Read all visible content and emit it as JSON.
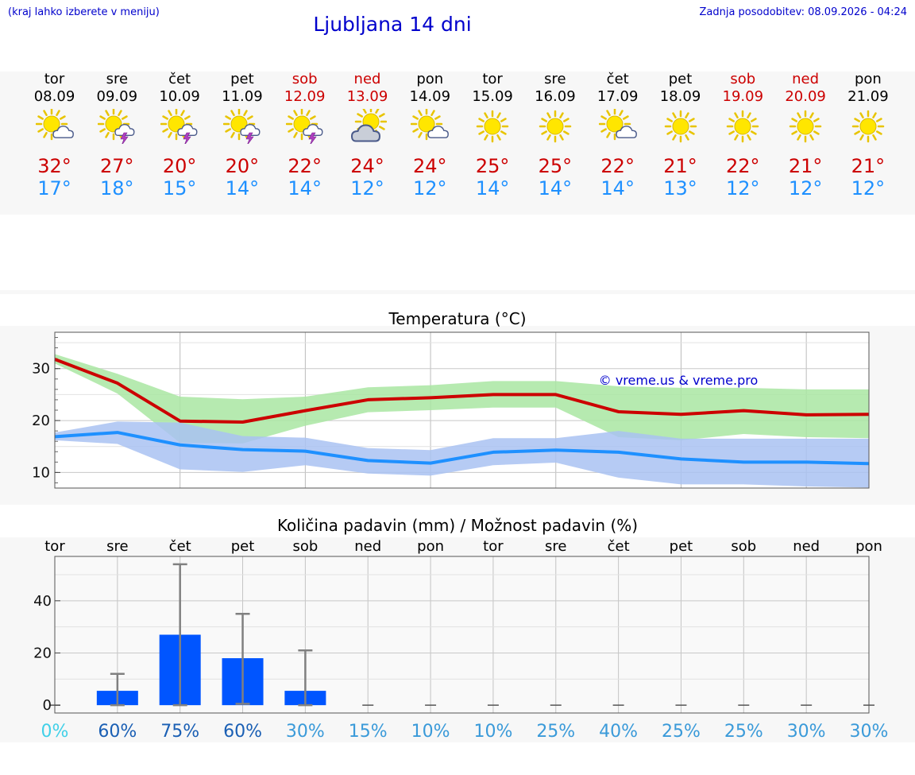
{
  "header": {
    "left_note": "(kraj lahko izberete v meniju)",
    "title": "Ljubljana 14 dni",
    "updated": "Zadnja posodobitev: 08.09.2026 - 04:24"
  },
  "colors": {
    "weekend": "#cc0000",
    "max_temp": "#cc0000",
    "min_temp": "#1e90ff",
    "max_band": "#a9e6a2",
    "min_band": "#a9c2f2",
    "bar": "#0055ff",
    "error_bar": "#808080"
  },
  "days": [
    {
      "name": "tor",
      "date": "08.09",
      "icon": "sun-cloud-icon",
      "max": "32°",
      "min": "17°",
      "weekend": false
    },
    {
      "name": "sre",
      "date": "09.09",
      "icon": "sun-storm-icon",
      "max": "27°",
      "min": "18°",
      "weekend": false
    },
    {
      "name": "čet",
      "date": "10.09",
      "icon": "sun-storm-icon",
      "max": "20°",
      "min": "15°",
      "weekend": false
    },
    {
      "name": "pet",
      "date": "11.09",
      "icon": "sun-storm-icon",
      "max": "20°",
      "min": "14°",
      "weekend": false
    },
    {
      "name": "sob",
      "date": "12.09",
      "icon": "sun-storm-icon",
      "max": "22°",
      "min": "14°",
      "weekend": true
    },
    {
      "name": "ned",
      "date": "13.09",
      "icon": "cloud-sun-icon",
      "max": "24°",
      "min": "12°",
      "weekend": true
    },
    {
      "name": "pon",
      "date": "14.09",
      "icon": "sun-cloud-icon",
      "max": "24°",
      "min": "12°",
      "weekend": false
    },
    {
      "name": "tor",
      "date": "15.09",
      "icon": "sun-icon",
      "max": "25°",
      "min": "14°",
      "weekend": false
    },
    {
      "name": "sre",
      "date": "16.09",
      "icon": "sun-icon",
      "max": "25°",
      "min": "14°",
      "weekend": false
    },
    {
      "name": "čet",
      "date": "17.09",
      "icon": "sun-cloud-icon",
      "max": "22°",
      "min": "14°",
      "weekend": false
    },
    {
      "name": "pet",
      "date": "18.09",
      "icon": "sun-icon",
      "max": "21°",
      "min": "13°",
      "weekend": false
    },
    {
      "name": "sob",
      "date": "19.09",
      "icon": "sun-icon",
      "max": "22°",
      "min": "12°",
      "weekend": true
    },
    {
      "name": "ned",
      "date": "20.09",
      "icon": "sun-icon",
      "max": "21°",
      "min": "12°",
      "weekend": true
    },
    {
      "name": "pon",
      "date": "21.09",
      "icon": "sun-icon",
      "max": "21°",
      "min": "12°",
      "weekend": false
    }
  ],
  "chart_data": [
    {
      "type": "line",
      "title": "Temperatura (°C)",
      "watermark": "© vreme.us & vreme.pro",
      "ylim": [
        7,
        37
      ],
      "yticks": [
        10,
        20,
        30
      ],
      "grid": true,
      "x": [
        "08.09",
        "09.09",
        "10.09",
        "11.09",
        "12.09",
        "13.09",
        "14.09",
        "15.09",
        "16.09",
        "17.09",
        "18.09",
        "19.09",
        "20.09",
        "21.09"
      ],
      "series": [
        {
          "role": "max",
          "values": [
            31.8,
            27.2,
            19.9,
            19.7,
            21.9,
            24.0,
            24.4,
            25.0,
            25.0,
            21.7,
            21.2,
            21.9,
            21.1,
            21.2
          ]
        },
        {
          "role": "max_range_high",
          "values": [
            32.8,
            29.0,
            24.6,
            24.1,
            24.6,
            26.4,
            26.8,
            27.6,
            27.6,
            26.6,
            26.3,
            26.3,
            26.0,
            26.0
          ]
        },
        {
          "role": "max_range_low",
          "values": [
            31.0,
            25.2,
            15.7,
            15.6,
            19.0,
            21.6,
            22.0,
            22.5,
            22.5,
            16.8,
            16.2,
            17.4,
            16.8,
            16.6
          ]
        },
        {
          "role": "min",
          "values": [
            16.9,
            17.7,
            15.3,
            14.4,
            14.1,
            12.3,
            11.8,
            13.9,
            14.3,
            13.9,
            12.6,
            12.0,
            12.0,
            11.7
          ]
        },
        {
          "role": "min_range_high",
          "values": [
            17.7,
            19.8,
            19.6,
            17.0,
            16.7,
            14.7,
            14.3,
            16.6,
            16.6,
            18.0,
            16.5,
            16.5,
            16.5,
            16.5
          ]
        },
        {
          "role": "min_range_low",
          "values": [
            16.2,
            15.5,
            10.6,
            10.1,
            11.4,
            9.8,
            9.4,
            11.4,
            11.9,
            9.0,
            7.7,
            7.7,
            7.3,
            7.1
          ]
        }
      ]
    },
    {
      "type": "bar",
      "title": "Količina padavin (mm) / Možnost padavin (%)",
      "categories": [
        "tor",
        "sre",
        "čet",
        "pet",
        "sob",
        "ned",
        "pon",
        "tor",
        "sre",
        "čet",
        "pet",
        "sob",
        "ned",
        "pon"
      ],
      "ylim": [
        -3,
        57
      ],
      "yticks": [
        0,
        20,
        40
      ],
      "grid": true,
      "values": [
        0,
        5.5,
        27,
        18,
        5.5,
        0,
        0,
        0,
        0,
        0,
        0,
        0,
        0,
        0
      ],
      "error_high": [
        0,
        12,
        54,
        35,
        21,
        0,
        0,
        0,
        0,
        0,
        0,
        0,
        0,
        0
      ],
      "error_low": [
        0,
        0,
        0,
        0.5,
        0,
        0,
        0,
        0,
        0,
        0,
        0,
        0,
        0,
        0
      ],
      "probability": [
        "0%",
        "60%",
        "75%",
        "60%",
        "30%",
        "15%",
        "10%",
        "10%",
        "25%",
        "40%",
        "25%",
        "25%",
        "30%",
        "30%"
      ],
      "probability_colors": [
        "#40d0e8",
        "#1a5fb4",
        "#1a5fb4",
        "#1a5fb4",
        "#3a9ad9",
        "#3a9ad9",
        "#3a9ad9",
        "#3a9ad9",
        "#3a9ad9",
        "#3a9ad9",
        "#3a9ad9",
        "#3a9ad9",
        "#3a9ad9",
        "#3a9ad9"
      ]
    }
  ]
}
